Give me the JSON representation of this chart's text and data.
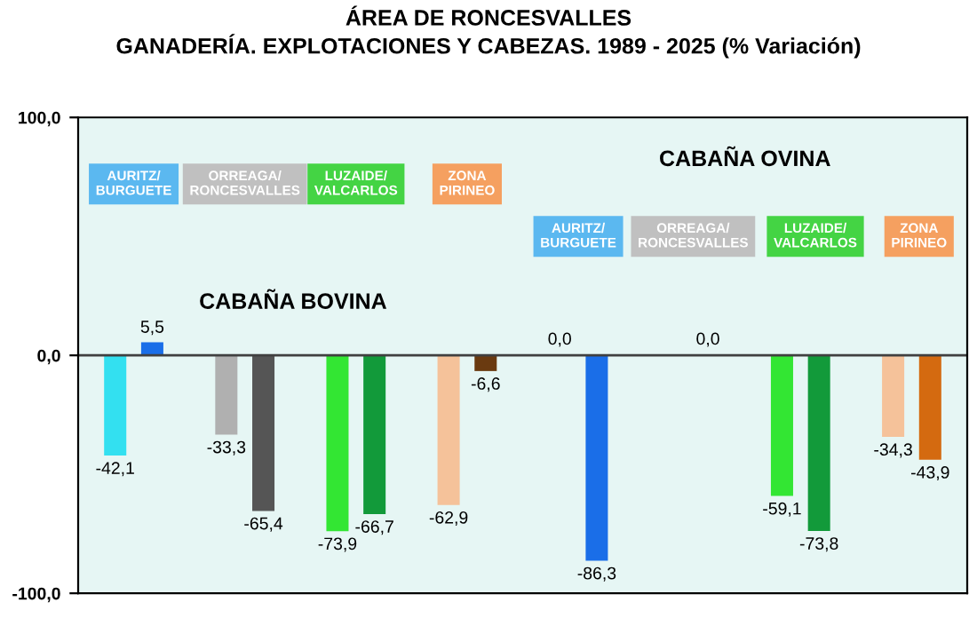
{
  "chart_data": {
    "type": "bar",
    "title": "ÁREA DE RONCESVALLES\nGANADERÍA. EXPLOTACIONES Y CABEZAS. 1989 - 2025 (% Variación)",
    "categories": [
      null,
      null,
      null,
      null,
      null,
      null,
      null,
      null,
      null,
      null,
      null,
      null,
      null,
      null,
      null,
      null,
      null,
      null,
      null,
      null,
      null,
      null,
      null
    ],
    "values": [
      -42.1,
      5.5,
      null,
      -33.3,
      -65.4,
      null,
      -73.9,
      -66.7,
      null,
      -62.9,
      -6.6,
      null,
      0.0,
      -86.3,
      null,
      null,
      0.0,
      null,
      -59.1,
      -73.8,
      null,
      -34.3,
      -43.9
    ],
    "value_labels": [
      "-42,1",
      "5,5",
      null,
      "-33,3",
      "-65,4",
      null,
      "-73,9",
      "-66,7",
      null,
      "-62,9",
      "-6,6",
      null,
      "0,0",
      "-86,3",
      null,
      null,
      "0,0",
      null,
      "-59,1",
      "-73,8",
      null,
      "-34,3",
      "-43,9"
    ],
    "colors": [
      "#33e0f0",
      "#1a6ee8",
      "#ffffff",
      "#b0b0b0",
      "#555555",
      "#ffffff",
      "#33e633",
      "#129a3a",
      "#ffffff",
      "#f5c29a",
      "#6a3a10",
      "#ffffff",
      "#1a6ee8",
      "#1a6ee8",
      "#ffffff",
      "#ffffff",
      "#b0b0b0",
      "#555555",
      "#33e633",
      "#129a3a",
      "#ffffff",
      "#f5c29a",
      "#d46a10"
    ],
    "ylim": [
      -100,
      100
    ],
    "yticks": [
      {
        "value": -100,
        "label": "-100,0"
      },
      {
        "value": 0,
        "label": "0,0"
      },
      {
        "value": 100,
        "label": "100,0"
      }
    ],
    "grid": false,
    "ref_lines": [
      {
        "axis": "y",
        "value": 0,
        "color": "#404040"
      }
    ],
    "annotations": [
      "AURITZ/\nBURGUETE",
      "ORREAGA/\nRONCESVALLES",
      "LUZAIDE/\nVALCARLOS",
      "ZONA\nPIRINEO",
      "CABAÑA BOVINA",
      "AURITZ/\nBURGUETE",
      "ORREAGA/\nRONCESVALLES",
      "LUZAIDE/\nVALCARLOS",
      "ZONA\nPIRINEO",
      "CABAÑA OVINA"
    ]
  }
}
